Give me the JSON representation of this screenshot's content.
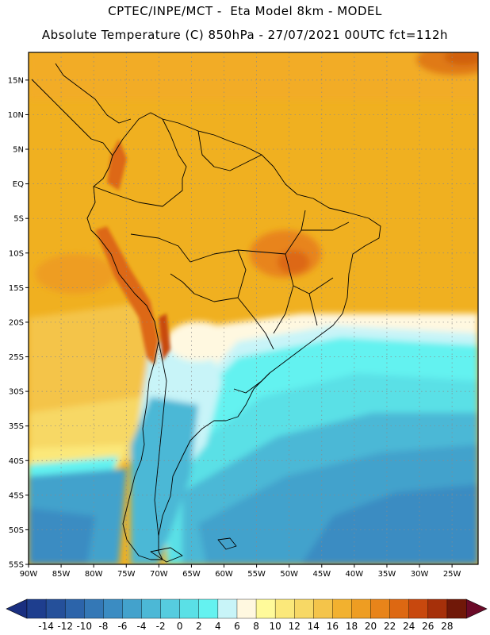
{
  "header": {
    "title_line1": "CPTEC/INPE/MCT -  Eta Model 8km - MODEL",
    "title_line2": "Absolute Temperature (C) 850hPa - 27/07/2021 00UTC fct=112h"
  },
  "map": {
    "lon_range": [
      -90,
      -21
    ],
    "lat_range": [
      -55,
      19
    ],
    "lon_ticks": [
      {
        "v": -90,
        "label": "90W"
      },
      {
        "v": -85,
        "label": "85W"
      },
      {
        "v": -80,
        "label": "80W"
      },
      {
        "v": -75,
        "label": "75W"
      },
      {
        "v": -70,
        "label": "70W"
      },
      {
        "v": -65,
        "label": "65W"
      },
      {
        "v": -60,
        "label": "60W"
      },
      {
        "v": -55,
        "label": "55W"
      },
      {
        "v": -50,
        "label": "50W"
      },
      {
        "v": -45,
        "label": "45W"
      },
      {
        "v": -40,
        "label": "40W"
      },
      {
        "v": -35,
        "label": "35W"
      },
      {
        "v": -30,
        "label": "30W"
      },
      {
        "v": -25,
        "label": "25W"
      }
    ],
    "lat_ticks": [
      {
        "v": 15,
        "label": "15N"
      },
      {
        "v": 10,
        "label": "10N"
      },
      {
        "v": 5,
        "label": "5N"
      },
      {
        "v": 0,
        "label": "EQ"
      },
      {
        "v": -5,
        "label": "5S"
      },
      {
        "v": -10,
        "label": "10S"
      },
      {
        "v": -15,
        "label": "15S"
      },
      {
        "v": -20,
        "label": "20S"
      },
      {
        "v": -25,
        "label": "25S"
      },
      {
        "v": -30,
        "label": "30S"
      },
      {
        "v": -35,
        "label": "35S"
      },
      {
        "v": -40,
        "label": "40S"
      },
      {
        "v": -45,
        "label": "45S"
      },
      {
        "v": -50,
        "label": "50S"
      },
      {
        "v": -55,
        "label": "55S"
      }
    ],
    "ocean_color": "#f0b020",
    "grid_color": "#8a8a8a"
  },
  "colorbar": {
    "levels": [
      "-14",
      "-12",
      "-10",
      "-8",
      "-6",
      "-4",
      "-2",
      "0",
      "2",
      "4",
      "6",
      "8",
      "10",
      "12",
      "14",
      "16",
      "18",
      "20",
      "22",
      "24",
      "26",
      "28"
    ],
    "colors": [
      "#1e3e8e",
      "#25509a",
      "#2c64aa",
      "#3478b6",
      "#3b8cc2",
      "#43a2cc",
      "#4cb8d6",
      "#56ccdf",
      "#5ae0e6",
      "#64f2f0",
      "#c8f4f8",
      "#fff8e0",
      "#fffa9a",
      "#fbe87a",
      "#f7d865",
      "#f4c44a",
      "#f2b12f",
      "#ee9d22",
      "#e8841a",
      "#dd6812",
      "#c8480e",
      "#a6300a",
      "#701808"
    ],
    "low_extend_color": "#1a2f80",
    "high_extend_color": "#6b0a28"
  }
}
